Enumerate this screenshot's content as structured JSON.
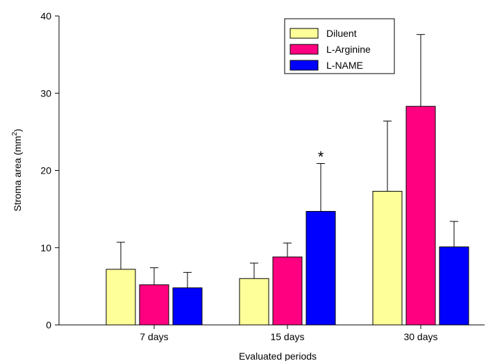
{
  "chart_data": {
    "type": "bar",
    "xlabel": "Evaluated periods",
    "ylabel": "Stroma area (mm",
    "ylabel_sup": "2",
    "ylabel_suffix": ")",
    "ylim": [
      0,
      40
    ],
    "yticks": [
      0,
      10,
      20,
      30,
      40
    ],
    "grid": false,
    "legend_position": "top-right",
    "categories": [
      "7 days",
      "15 days",
      "30 days"
    ],
    "series": [
      {
        "name": "Diluent",
        "color": "#ffff99",
        "values": [
          7.2,
          6.0,
          17.3
        ],
        "errors": [
          3.5,
          2.0,
          9.1
        ]
      },
      {
        "name": "L-Arginine",
        "color": "#ff0080",
        "values": [
          5.2,
          8.8,
          28.3
        ],
        "errors": [
          2.2,
          1.8,
          9.3
        ]
      },
      {
        "name": "L-NAME",
        "color": "#0000ff",
        "values": [
          4.8,
          14.7,
          10.1
        ],
        "errors": [
          2.0,
          6.2,
          3.3
        ]
      }
    ],
    "annotations": [
      {
        "text": "*",
        "category_index": 1,
        "series_index": 2
      }
    ]
  }
}
